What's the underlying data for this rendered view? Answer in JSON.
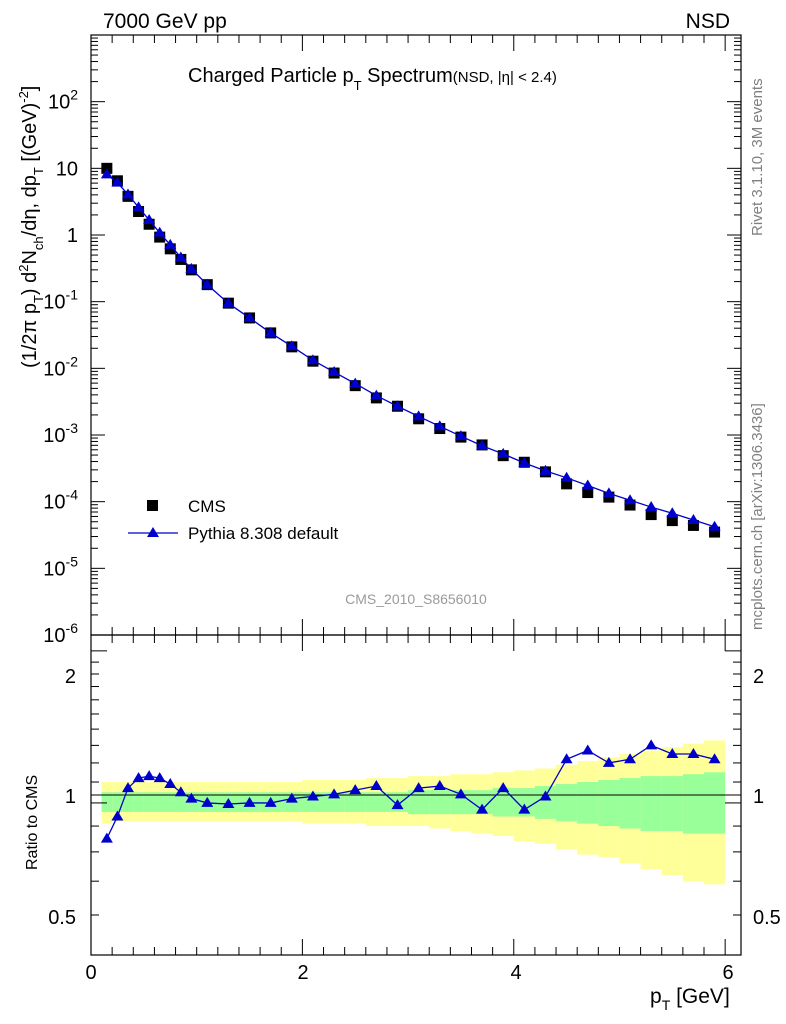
{
  "header": {
    "energy_label": "7000 GeV pp",
    "process_label": "NSD",
    "title_main": "Charged Particle p",
    "title_sub": "T",
    "title_rest": " Spectrum",
    "title_cut": "(NSD, |η| < 2.4)",
    "analysis_id": "CMS_2010_S8656010",
    "side_rivet": "Rivet 3.1.10,  3M events",
    "side_mcplots": "mcplots.cern.ch [arXiv:1306.3436]"
  },
  "axes": {
    "xlabel": "p",
    "xlabel_sub": "T",
    "xlabel_unit": " [GeV]",
    "ylabel_main": "(1/2π p",
    "ylabel_ratio": "Ratio to CMS",
    "ratio_ticks": [
      "0.5",
      "1",
      "2"
    ],
    "x_ticks": [
      "0",
      "2",
      "4",
      "6"
    ]
  },
  "legend": {
    "data_label": "CMS",
    "mc_label": "Pythia 8.308 default"
  },
  "colors": {
    "data": "#000000",
    "mc": "#0000cc",
    "band_inner": "#99ff99",
    "band_outer": "#ffff99"
  },
  "chart_data": {
    "type": "scatter",
    "x": [
      0.15,
      0.25,
      0.35,
      0.45,
      0.55,
      0.65,
      0.75,
      0.85,
      0.95,
      1.1,
      1.3,
      1.5,
      1.7,
      1.9,
      2.1,
      2.3,
      2.5,
      2.7,
      2.9,
      3.1,
      3.3,
      3.5,
      3.7,
      3.9,
      4.1,
      4.3,
      4.5,
      4.7,
      4.9,
      5.1,
      5.3,
      5.5,
      5.7,
      5.9
    ],
    "xlim": [
      0,
      6.15
    ],
    "ylim_main": [
      1e-06,
      1000
    ],
    "yscale_main": "log",
    "ylim_ratio": [
      0.5,
      2.15
    ],
    "yscale_ratio": "log",
    "series": [
      {
        "name": "CMS",
        "values": [
          10.0,
          6.5,
          3.8,
          2.25,
          1.45,
          0.93,
          0.62,
          0.43,
          0.3,
          0.18,
          0.095,
          0.057,
          0.034,
          0.021,
          0.0128,
          0.0085,
          0.0055,
          0.0036,
          0.0027,
          0.00175,
          0.00125,
          0.00093,
          0.00071,
          0.00049,
          0.00039,
          0.00028,
          0.000185,
          0.000137,
          0.000117,
          8.9e-05,
          6.4e-05,
          5.2e-05,
          4.4e-05,
          3.5e-05
        ]
      },
      {
        "name": "Pythia 8.308 default",
        "values": [
          8.1,
          6.1,
          4.05,
          2.6,
          1.68,
          1.08,
          0.71,
          0.46,
          0.31,
          0.18,
          0.0945,
          0.057,
          0.034,
          0.0214,
          0.0132,
          0.0088,
          0.0059,
          0.0039,
          0.0027,
          0.0019,
          0.00135,
          0.00096,
          0.00069,
          0.00052,
          0.00038,
          0.00029,
          0.000228,
          0.000175,
          0.000133,
          0.000105,
          8.3e-05,
          6.7e-05,
          5.3e-05,
          4.2e-05
        ]
      }
    ],
    "ratio_mc": [
      0.85,
      0.94,
      1.07,
      1.12,
      1.13,
      1.12,
      1.09,
      1.05,
      1.02,
      1.0,
      0.995,
      1.0,
      1.0,
      1.02,
      1.03,
      1.04,
      1.06,
      1.08,
      0.99,
      1.07,
      1.08,
      1.04,
      0.97,
      1.07,
      0.97,
      1.03,
      1.22,
      1.27,
      1.2,
      1.22,
      1.3,
      1.25,
      1.25,
      1.22
    ],
    "band_outer_hi": [
      1.1,
      1.1,
      1.1,
      1.1,
      1.1,
      1.1,
      1.1,
      1.1,
      1.1,
      1.1,
      1.1,
      1.1,
      1.1,
      1.1,
      1.11,
      1.11,
      1.11,
      1.12,
      1.12,
      1.13,
      1.13,
      1.14,
      1.14,
      1.15,
      1.16,
      1.17,
      1.19,
      1.21,
      1.23,
      1.25,
      1.27,
      1.29,
      1.31,
      1.33
    ],
    "band_outer_lo": [
      0.91,
      0.92,
      0.92,
      0.92,
      0.92,
      0.92,
      0.92,
      0.92,
      0.92,
      0.92,
      0.92,
      0.92,
      0.92,
      0.92,
      0.91,
      0.91,
      0.91,
      0.9,
      0.9,
      0.9,
      0.89,
      0.88,
      0.87,
      0.86,
      0.84,
      0.83,
      0.81,
      0.79,
      0.78,
      0.76,
      0.74,
      0.72,
      0.7,
      0.69
    ],
    "band_inner_hi": [
      1.05,
      1.05,
      1.05,
      1.05,
      1.05,
      1.05,
      1.05,
      1.05,
      1.05,
      1.05,
      1.05,
      1.05,
      1.05,
      1.05,
      1.05,
      1.05,
      1.05,
      1.05,
      1.05,
      1.06,
      1.06,
      1.06,
      1.06,
      1.07,
      1.07,
      1.08,
      1.09,
      1.1,
      1.11,
      1.12,
      1.13,
      1.13,
      1.14,
      1.15
    ],
    "band_inner_lo": [
      0.96,
      0.96,
      0.96,
      0.96,
      0.96,
      0.96,
      0.96,
      0.96,
      0.96,
      0.96,
      0.96,
      0.96,
      0.96,
      0.96,
      0.96,
      0.96,
      0.96,
      0.96,
      0.96,
      0.95,
      0.95,
      0.95,
      0.95,
      0.94,
      0.94,
      0.93,
      0.92,
      0.91,
      0.9,
      0.89,
      0.88,
      0.88,
      0.87,
      0.87
    ]
  }
}
